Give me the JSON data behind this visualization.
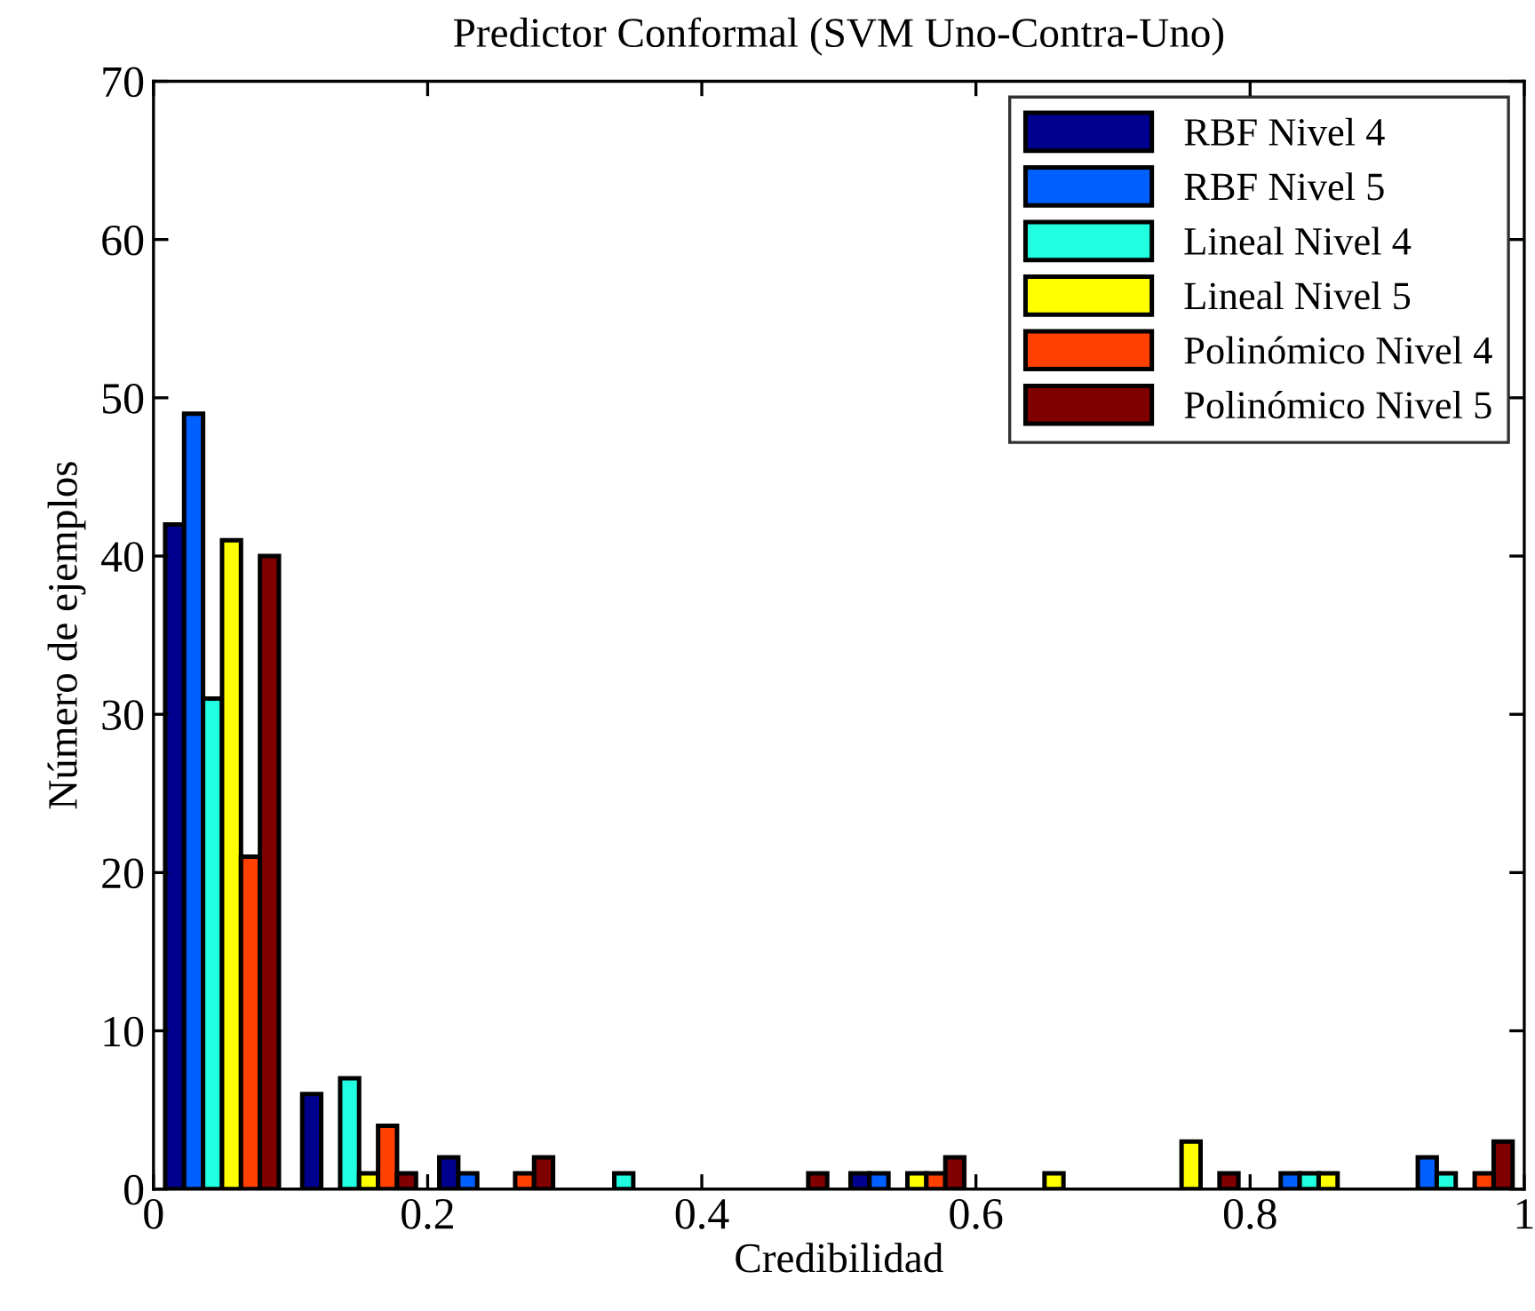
{
  "chart_data": {
    "type": "bar",
    "title": "Predictor Conformal (SVM Uno-Contra-Uno)",
    "xlabel": "Credibilidad",
    "ylabel": "Número de ejemplos",
    "x": [
      0.05,
      0.15,
      0.25,
      0.35,
      0.45,
      0.55,
      0.65,
      0.75,
      0.85,
      0.95
    ],
    "series": [
      {
        "name": "RBF Nivel 4",
        "color": "#00008f",
        "values": [
          42,
          6,
          2,
          0,
          0,
          1,
          0,
          0,
          0,
          0
        ]
      },
      {
        "name": "RBF Nivel 5",
        "color": "#0060ff",
        "values": [
          49,
          0,
          1,
          0,
          0,
          1,
          0,
          0,
          1,
          2
        ]
      },
      {
        "name": "Lineal Nivel 4",
        "color": "#20ffdf",
        "values": [
          31,
          7,
          0,
          1,
          0,
          0,
          0,
          0,
          1,
          1
        ]
      },
      {
        "name": "Lineal Nivel 5",
        "color": "#ffff00",
        "values": [
          41,
          1,
          0,
          0,
          0,
          1,
          1,
          3,
          1,
          0
        ]
      },
      {
        "name": "Polinómico Nivel 4",
        "color": "#ff4000",
        "values": [
          21,
          4,
          1,
          0,
          0,
          1,
          0,
          0,
          0,
          1
        ]
      },
      {
        "name": "Polinómico Nivel 5",
        "color": "#800000",
        "values": [
          40,
          1,
          2,
          0,
          1,
          2,
          0,
          1,
          0,
          3
        ]
      }
    ],
    "xlim": [
      0,
      1
    ],
    "xticks": [
      0,
      0.2,
      0.4,
      0.6,
      0.8,
      1
    ],
    "ylim": [
      0,
      70
    ],
    "yticks": [
      0,
      10,
      20,
      30,
      40,
      50,
      60,
      70
    ],
    "grid": false,
    "legend": "top right"
  }
}
